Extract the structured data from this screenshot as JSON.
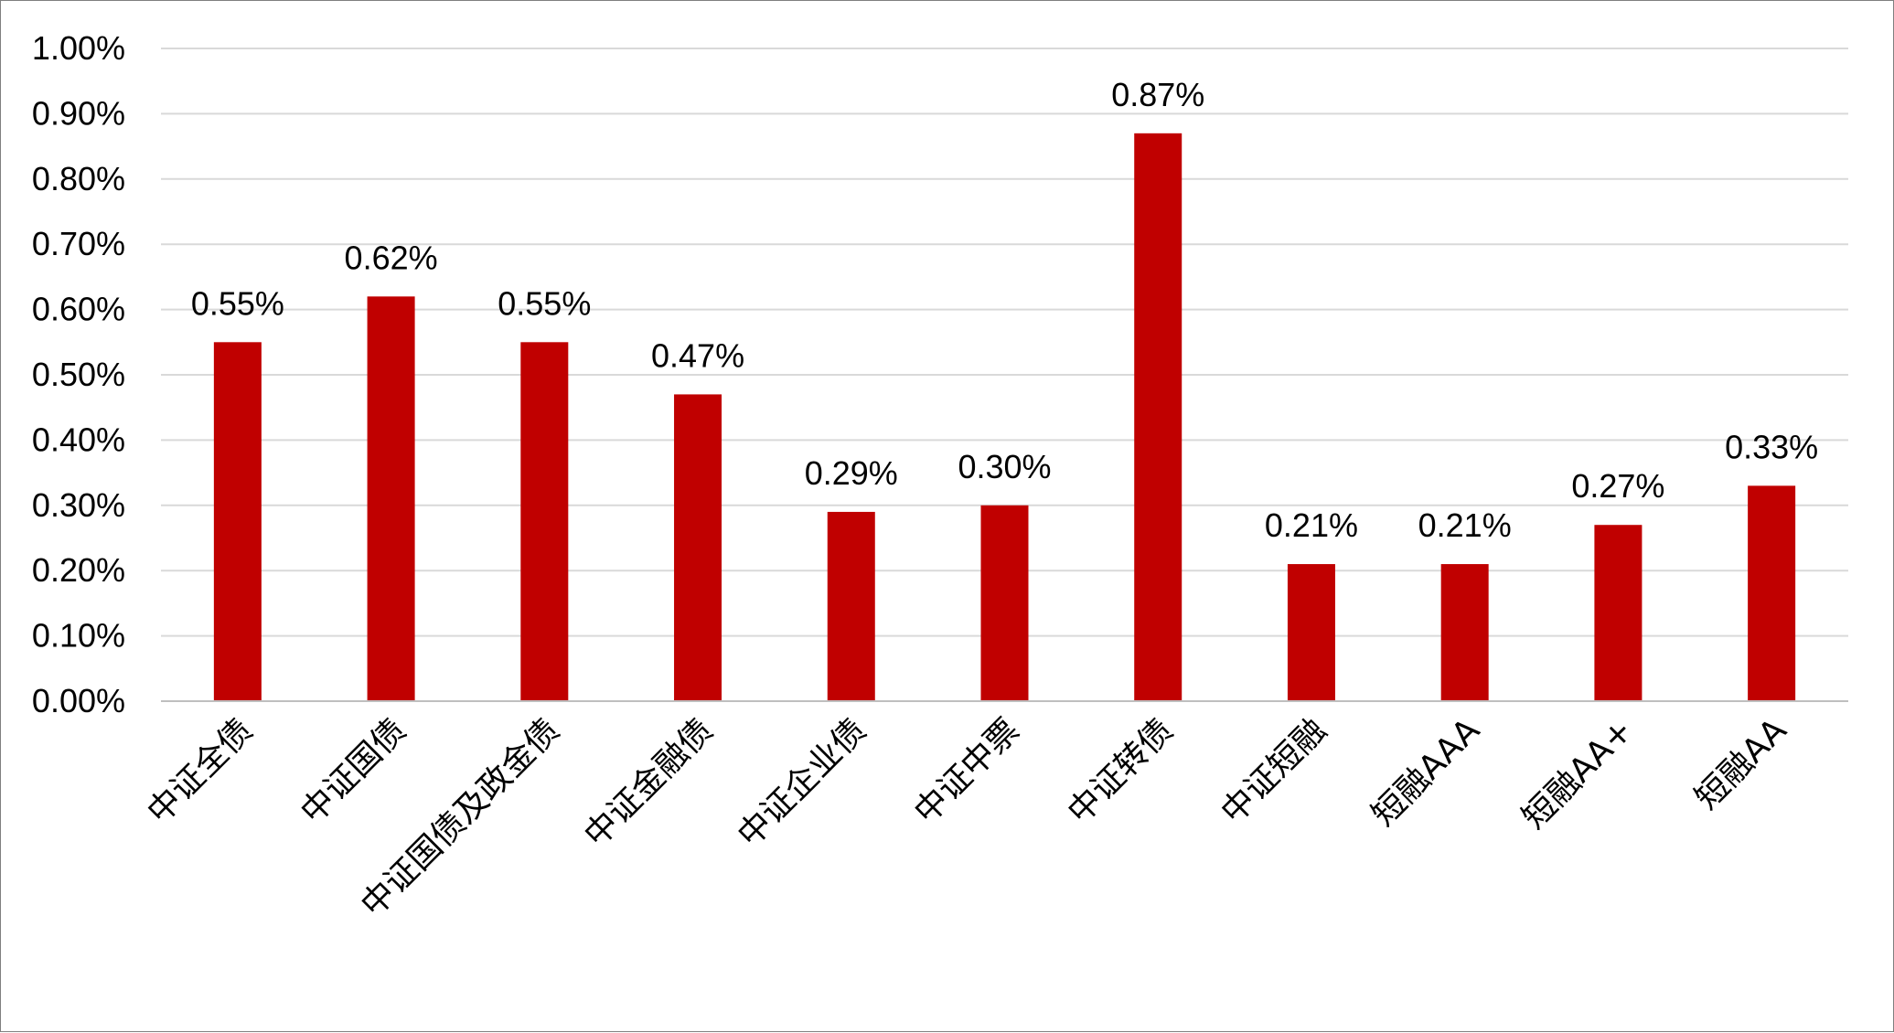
{
  "chart_data": {
    "type": "bar",
    "title": "",
    "xlabel": "",
    "ylabel": "",
    "ylim": [
      0,
      1.0
    ],
    "y_ticks": [
      0.0,
      0.1,
      0.2,
      0.3,
      0.4,
      0.5,
      0.6,
      0.7,
      0.8,
      0.9,
      1.0
    ],
    "y_tick_labels": [
      "0.00%",
      "0.10%",
      "0.20%",
      "0.30%",
      "0.40%",
      "0.50%",
      "0.60%",
      "0.70%",
      "0.80%",
      "0.90%",
      "1.00%"
    ],
    "y_unit": "%",
    "grid": true,
    "legend": false,
    "categories": [
      "中证全债",
      "中证国债",
      "中证国债及政金债",
      "中证金融债",
      "中证企业债",
      "中证中票",
      "中证转债",
      "中证短融",
      "短融AAA",
      "短融AA+",
      "短融AA"
    ],
    "values": [
      0.55,
      0.62,
      0.55,
      0.47,
      0.29,
      0.3,
      0.87,
      0.21,
      0.21,
      0.27,
      0.33
    ],
    "data_labels": [
      "0.55%",
      "0.62%",
      "0.55%",
      "0.47%",
      "0.29%",
      "0.30%",
      "0.87%",
      "0.21%",
      "0.21%",
      "0.27%",
      "0.33%"
    ],
    "colors": {
      "bar": "#C00000",
      "grid": "#D9D9D9",
      "axis": "#BFBFBF",
      "border": "#7F7F7F"
    }
  }
}
